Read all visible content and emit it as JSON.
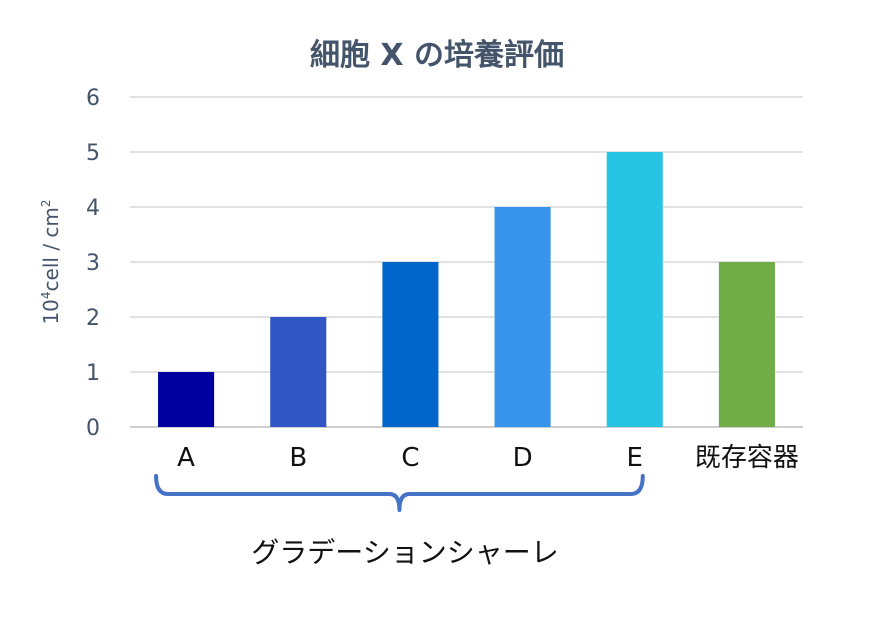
{
  "chart_data": {
    "type": "bar",
    "title": "細胞 X の培養評価",
    "ylabel": {
      "base": "10",
      "sup": "4",
      "rest": "cell / cm",
      "sup2": "2"
    },
    "xlabel": "",
    "categories": [
      "A",
      "B",
      "C",
      "D",
      "E",
      "既存容器"
    ],
    "values": [
      1,
      2,
      3,
      4,
      5,
      3
    ],
    "bar_colors": [
      "#0000a0",
      "#2f56c4",
      "#0066cc",
      "#3794ea",
      "#27c3e3",
      "#70ad47"
    ],
    "ylim": [
      0,
      6
    ],
    "yticks": [
      0,
      1,
      2,
      3,
      4,
      5,
      6
    ],
    "grid": true,
    "group_annotation": {
      "label": "グラデーションシャーレ",
      "spans_categories": [
        "A",
        "B",
        "C",
        "D",
        "E"
      ],
      "color": "#4472c4"
    }
  }
}
